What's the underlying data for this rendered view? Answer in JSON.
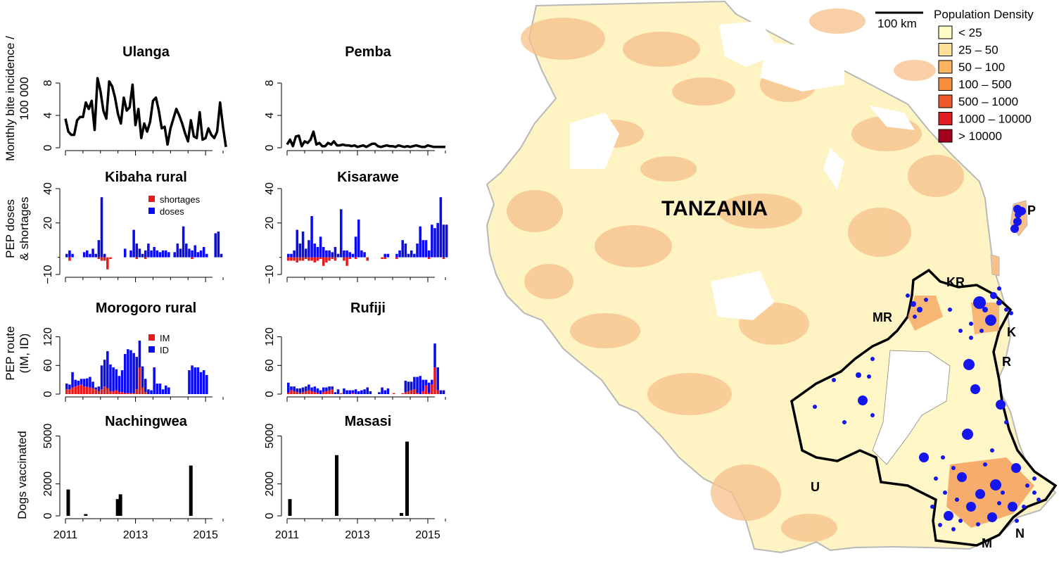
{
  "chart_data": [
    {
      "type": "line",
      "title": "Ulanga",
      "ylabel": "Monthly bite incidence /\n100 000",
      "ylim": [
        0,
        10
      ],
      "yticks": [
        "0",
        "4",
        "8"
      ],
      "xrange": [
        2011,
        2015.6
      ],
      "x_start": 2011.0,
      "x_step": 0.0833,
      "values": [
        3.6,
        2.0,
        1.6,
        1.6,
        3.4,
        3.8,
        3.8,
        5.6,
        4.8,
        5.8,
        2.2,
        8.6,
        7.0,
        4.6,
        3.6,
        8.2,
        7.6,
        6.2,
        4.2,
        3.0,
        6.2,
        4.6,
        5.0,
        7.8,
        2.8,
        4.8,
        1.2,
        3.0,
        2.0,
        3.2,
        5.8,
        6.2,
        4.6,
        2.4,
        2.6,
        0.4,
        2.4,
        3.6,
        4.8,
        4.0,
        3.0,
        1.8,
        0.8,
        3.4,
        1.4,
        1.2,
        4.4,
        1.0,
        1.2,
        2.4,
        1.6,
        1.2,
        2.0,
        5.6,
        2.6,
        0.1
      ]
    },
    {
      "type": "line",
      "title": "Pemba",
      "ylim": [
        0,
        10
      ],
      "yticks": [
        "0",
        "4",
        "8"
      ],
      "xrange": [
        2011,
        2015.6
      ],
      "x_start": 2011.0,
      "x_step": 0.0833,
      "values": [
        0.4,
        1.0,
        0.2,
        1.4,
        1.5,
        0.2,
        0.8,
        0.6,
        1.0,
        2.0,
        0.4,
        0.6,
        0.2,
        0.2,
        0.6,
        0.4,
        0.8,
        0.3,
        0.3,
        0.4,
        0.3,
        0.3,
        0.2,
        0.3,
        0.1,
        0.2,
        0.3,
        0.1,
        0.3,
        0.5,
        0.5,
        0.2,
        0.1,
        0.2,
        0.3,
        0.2,
        0.2,
        0.1,
        0.3,
        0.2,
        0.1,
        0.2,
        0.1,
        0.2,
        0.3,
        0.2,
        0.1,
        0.1,
        0.3,
        0.2,
        0.1,
        0.1,
        0.1,
        0.1,
        0.1
      ]
    },
    {
      "type": "bar",
      "title": "Kibaha rural",
      "ylabel": "PEP doses\n& shortages",
      "ylim": [
        -10,
        40
      ],
      "yticks": [
        "−10",
        "20",
        "40"
      ],
      "xrange": [
        2011,
        2015.6
      ],
      "x_start": 2011.0,
      "x_step": 0.0833,
      "series": [
        {
          "name": "shortages",
          "color": "#e8191b",
          "values": [
            0,
            -2,
            0,
            0,
            0,
            0,
            0,
            0,
            0,
            0,
            0,
            -1,
            -2,
            -2,
            -7,
            -1,
            0,
            0,
            0,
            0,
            0,
            0,
            0,
            0,
            -1,
            0,
            0,
            -1,
            0,
            0,
            0,
            0,
            0,
            0,
            0,
            0,
            0,
            0,
            0,
            0,
            0,
            0,
            0,
            -1,
            0,
            0,
            0,
            0,
            0,
            0,
            0,
            0,
            0,
            0,
            0
          ]
        },
        {
          "name": "doses",
          "color": "#0b0bf0",
          "values": [
            2,
            4,
            2,
            0,
            0,
            0,
            3,
            4,
            2,
            5,
            2,
            10,
            35,
            2,
            0,
            0,
            0,
            0,
            0,
            0,
            5,
            0,
            4,
            16,
            8,
            5,
            2,
            4,
            8,
            4,
            6,
            4,
            3,
            4,
            4,
            3,
            0,
            3,
            8,
            5,
            18,
            8,
            5,
            4,
            7,
            3,
            4,
            6,
            2,
            0,
            0,
            14,
            15,
            2,
            0
          ]
        }
      ],
      "legend": [
        "shortages",
        "doses"
      ]
    },
    {
      "type": "bar",
      "title": "Kisarawe",
      "ylim": [
        -10,
        40
      ],
      "yticks": [
        "−10",
        "20",
        "40"
      ],
      "xrange": [
        2011,
        2015.6
      ],
      "x_start": 2011.0,
      "x_step": 0.0833,
      "series": [
        {
          "name": "shortages",
          "color": "#e8191b",
          "values": [
            -2,
            -2,
            -2,
            -3,
            -2,
            -2,
            -1,
            -2,
            -2,
            -3,
            -2,
            -1,
            -5,
            -3,
            -2,
            -1,
            -2,
            0,
            0,
            -2,
            -5,
            -1,
            0,
            -1,
            0,
            0,
            0,
            -2,
            0,
            0,
            0,
            0,
            -1,
            -1,
            0,
            0,
            0,
            -1,
            0,
            0,
            0,
            0,
            0,
            0,
            0,
            0,
            0,
            0,
            -1,
            0,
            0,
            0,
            0,
            -1,
            0
          ]
        },
        {
          "name": "doses",
          "color": "#0b0bf0",
          "values": [
            2,
            2,
            4,
            16,
            8,
            15,
            5,
            10,
            24,
            8,
            6,
            12,
            6,
            4,
            4,
            3,
            6,
            2,
            28,
            4,
            4,
            3,
            2,
            12,
            22,
            4,
            3,
            0,
            0,
            0,
            0,
            0,
            0,
            2,
            2,
            0,
            0,
            2,
            4,
            10,
            8,
            2,
            4,
            2,
            8,
            18,
            10,
            10,
            4,
            19,
            17,
            20,
            35,
            19,
            19
          ]
        }
      ]
    },
    {
      "type": "bar",
      "title": "Morogoro rural",
      "ylabel": "PEP route\n(IM, ID)",
      "ylim": [
        0,
        140
      ],
      "yticks": [
        "0",
        "60",
        "120"
      ],
      "xrange": [
        2011,
        2015.6
      ],
      "x_start": 2011.0,
      "x_step": 0.0833,
      "series": [
        {
          "name": "IM",
          "color": "#e8191b",
          "values": [
            10,
            10,
            14,
            16,
            18,
            20,
            16,
            15,
            14,
            12,
            10,
            6,
            10,
            16,
            12,
            6,
            6,
            8,
            4,
            4,
            2,
            2,
            2,
            2,
            10,
            56,
            14,
            4,
            0,
            0,
            0,
            0,
            0,
            0,
            0,
            0,
            0,
            0,
            0,
            0,
            0,
            0,
            0,
            0,
            0,
            0,
            0,
            0,
            0
          ]
        },
        {
          "name": "ID",
          "color": "#0b0bf0",
          "values": [
            12,
            10,
            32,
            14,
            10,
            12,
            16,
            18,
            22,
            14,
            4,
            10,
            50,
            56,
            78,
            56,
            50,
            44,
            34,
            46,
            82,
            92,
            90,
            84,
            68,
            56,
            44,
            28,
            10,
            8,
            56,
            22,
            22,
            10,
            18,
            14,
            0,
            0,
            0,
            0,
            0,
            0,
            50,
            60,
            56,
            56,
            46,
            50,
            40
          ]
        }
      ],
      "legend": [
        "IM",
        "ID"
      ]
    },
    {
      "type": "bar",
      "title": "Rufiji",
      "ylim": [
        0,
        140
      ],
      "yticks": [
        "0",
        "60",
        "120"
      ],
      "xrange": [
        2011,
        2015.6
      ],
      "x_start": 2011.0,
      "x_step": 0.0833,
      "series": [
        {
          "name": "IM",
          "color": "#e8191b",
          "values": [
            3,
            8,
            6,
            4,
            2,
            4,
            6,
            8,
            6,
            4,
            2,
            0,
            4,
            6,
            8,
            10,
            0,
            0,
            2,
            0,
            0,
            0,
            2,
            0,
            0,
            0,
            0,
            0,
            0,
            0,
            0,
            0,
            0,
            0,
            0,
            0,
            2,
            0,
            0,
            2,
            4,
            6,
            8,
            10,
            2,
            0,
            6,
            18,
            2,
            20,
            56,
            8,
            0,
            0
          ]
        },
        {
          "name": "ID",
          "color": "#0b0bf0",
          "values": [
            21,
            8,
            10,
            8,
            10,
            10,
            10,
            12,
            8,
            12,
            10,
            8,
            10,
            8,
            8,
            6,
            4,
            10,
            0,
            12,
            8,
            8,
            6,
            10,
            6,
            8,
            10,
            14,
            6,
            0,
            0,
            4,
            14,
            8,
            12,
            0,
            0,
            0,
            0,
            0,
            24,
            20,
            18,
            26,
            34,
            38,
            24,
            12,
            22,
            10,
            50,
            48,
            8,
            8
          ]
        }
      ]
    },
    {
      "type": "bar",
      "title": "Nachingwea",
      "ylabel": "Dogs vaccinated",
      "ylim": [
        0,
        5200
      ],
      "yticks": [
        "0",
        "2000",
        "5000"
      ],
      "xrange": [
        2011,
        2015.6
      ],
      "xticks": [
        "2011",
        "2013",
        "2015"
      ],
      "bars": [
        {
          "x": 2011.08,
          "y": 1650
        },
        {
          "x": 2011.58,
          "y": 110
        },
        {
          "x": 2012.49,
          "y": 1050
        },
        {
          "x": 2012.57,
          "y": 1350
        },
        {
          "x": 2014.58,
          "y": 3150
        }
      ]
    },
    {
      "type": "bar",
      "title": "Masasi",
      "ylim": [
        0,
        5200
      ],
      "yticks": [
        "0",
        "2000",
        "5000"
      ],
      "xrange": [
        2011,
        2015.6
      ],
      "xticks": [
        "2011",
        "2013",
        "2015"
      ],
      "bars": [
        {
          "x": 2011.08,
          "y": 1050
        },
        {
          "x": 2012.41,
          "y": 3800
        },
        {
          "x": 2014.25,
          "y": 180
        },
        {
          "x": 2014.41,
          "y": 4650
        }
      ]
    },
    {
      "type": "map",
      "title": "TANZANIA",
      "scalebar": "100 km",
      "legend_title": "Population Density",
      "legend": [
        {
          "label": "< 25",
          "color": "#fdfcc4"
        },
        {
          "label": "25 – 50",
          "color": "#fde09a"
        },
        {
          "label": "50 – 100",
          "color": "#fbb35f"
        },
        {
          "label": "100 – 500",
          "color": "#f58e3c"
        },
        {
          "label": "500 – 1000",
          "color": "#f05a28"
        },
        {
          "label": "1000 – 10000",
          "color": "#e21d1d"
        },
        {
          "label": "> 10000",
          "color": "#a50020"
        }
      ],
      "regions": [
        "P",
        "KR",
        "MR",
        "K",
        "R",
        "U",
        "M",
        "N"
      ]
    }
  ]
}
